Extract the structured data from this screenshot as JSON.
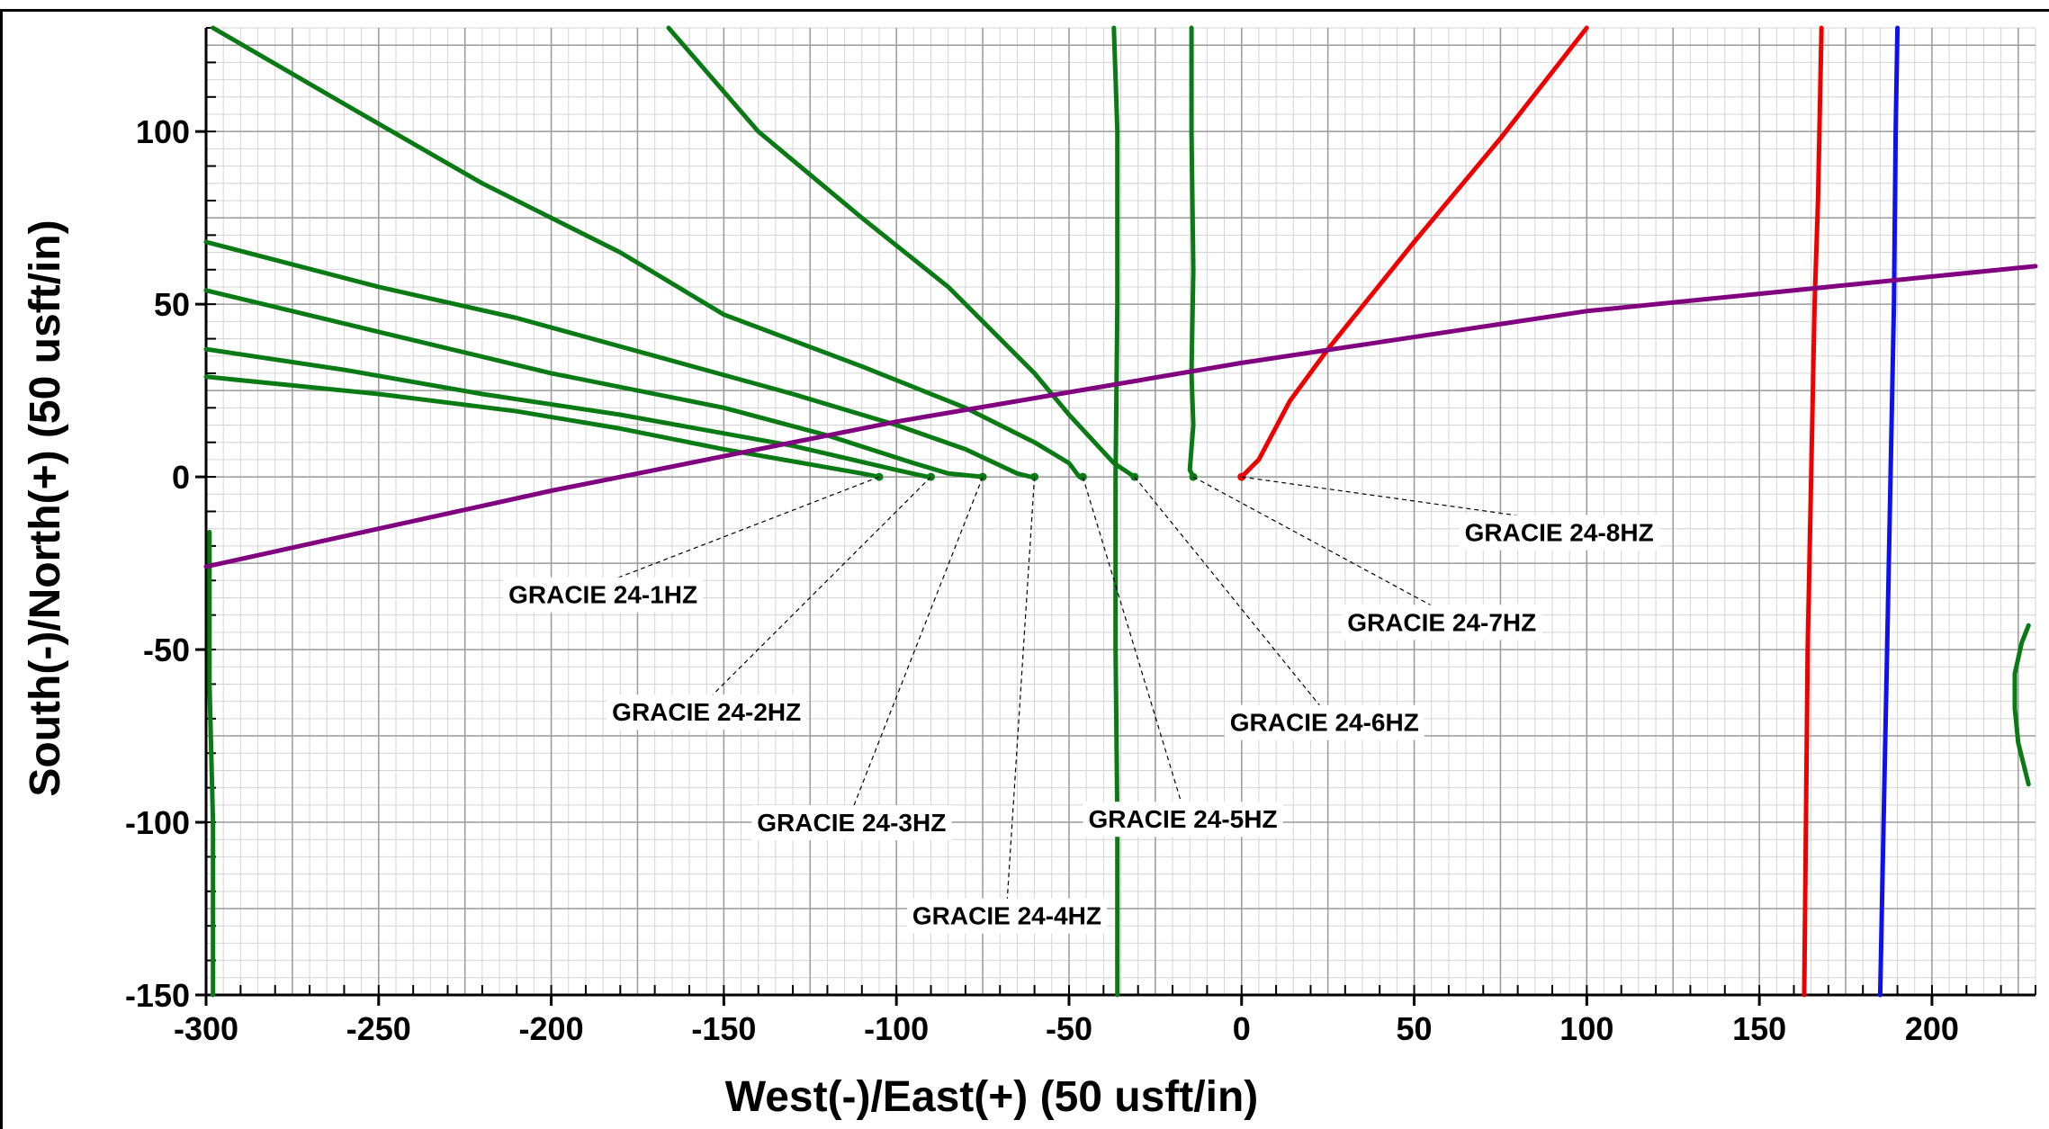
{
  "chart_data": {
    "type": "line",
    "xlabel": "West(-)/East(+) (50 usft/in)",
    "ylabel": "South(-)/North(+) (50 usft/in)",
    "xlim": [
      -300,
      230
    ],
    "ylim": [
      -150,
      130
    ],
    "x_ticks": [
      -300,
      -250,
      -200,
      -150,
      -100,
      -50,
      0,
      50,
      100,
      150,
      200
    ],
    "y_ticks": [
      -150,
      -100,
      -50,
      0,
      50,
      100
    ],
    "grid": true,
    "colors": {
      "green": "#0a7a14",
      "red": "#ee0000",
      "blue": "#1010ee",
      "purple": "#800080"
    },
    "series": [
      {
        "color": "green",
        "points": [
          [
            -105,
            0
          ],
          [
            -110,
            1
          ],
          [
            -150,
            8
          ],
          [
            -180,
            14
          ],
          [
            -210,
            19
          ],
          [
            -250,
            24
          ],
          [
            -300,
            29
          ]
        ]
      },
      {
        "color": "green",
        "points": [
          [
            -91,
            0
          ],
          [
            -100,
            2
          ],
          [
            -130,
            9
          ],
          [
            -180,
            18
          ],
          [
            -220,
            24
          ],
          [
            -260,
            31
          ],
          [
            -300,
            37
          ]
        ]
      },
      {
        "color": "green",
        "points": [
          [
            -75,
            0
          ],
          [
            -85,
            1
          ],
          [
            -95,
            4
          ],
          [
            -120,
            12
          ],
          [
            -150,
            20
          ],
          [
            -200,
            30
          ],
          [
            -250,
            42
          ],
          [
            -300,
            54
          ]
        ]
      },
      {
        "color": "green",
        "points": [
          [
            -61,
            0
          ],
          [
            -65,
            1
          ],
          [
            -80,
            8
          ],
          [
            -100,
            15
          ],
          [
            -130,
            24
          ],
          [
            -170,
            35
          ],
          [
            -210,
            46
          ],
          [
            -250,
            55
          ],
          [
            -300,
            68
          ]
        ]
      },
      {
        "color": "green",
        "points": [
          [
            -47,
            0
          ],
          [
            -50,
            4
          ],
          [
            -60,
            10
          ],
          [
            -80,
            20
          ],
          [
            -110,
            32
          ],
          [
            -150,
            47
          ],
          [
            -180,
            65
          ],
          [
            -220,
            85
          ],
          [
            -260,
            108
          ],
          [
            -298,
            130
          ]
        ]
      },
      {
        "color": "green",
        "points": [
          [
            -37,
            130
          ],
          [
            -36,
            100
          ],
          [
            -36,
            50
          ],
          [
            -36.5,
            0
          ],
          [
            -36.5,
            -50
          ],
          [
            -36,
            -100
          ],
          [
            -36,
            -150
          ]
        ]
      },
      {
        "color": "green",
        "points": [
          [
            -31,
            0
          ],
          [
            -37,
            4
          ],
          [
            -50,
            18
          ],
          [
            -60,
            30
          ],
          [
            -85,
            55
          ],
          [
            -110,
            75
          ],
          [
            -140,
            100
          ],
          [
            -166,
            130
          ]
        ]
      },
      {
        "color": "green",
        "points": [
          [
            -14,
            0
          ],
          [
            -15,
            2
          ],
          [
            -14,
            15
          ],
          [
            -14.5,
            30
          ],
          [
            -14,
            60
          ],
          [
            -14.5,
            100
          ],
          [
            -14.5,
            130
          ]
        ]
      },
      {
        "color": "green",
        "points": [
          [
            -299,
            -16
          ],
          [
            -299,
            -60
          ],
          [
            -298,
            -100
          ],
          [
            -298,
            -150
          ]
        ]
      },
      {
        "color": "green",
        "points": [
          [
            228,
            -43
          ],
          [
            226,
            -48
          ],
          [
            224,
            -57
          ],
          [
            224,
            -67
          ],
          [
            225,
            -77
          ],
          [
            228,
            -89
          ]
        ]
      },
      {
        "color": "red",
        "points": [
          [
            0,
            0
          ],
          [
            5,
            5
          ],
          [
            14,
            22
          ],
          [
            25,
            37
          ],
          [
            50,
            68
          ],
          [
            75,
            98
          ],
          [
            100,
            130
          ]
        ]
      },
      {
        "color": "red",
        "points": [
          [
            163,
            -150
          ],
          [
            163.5,
            -100
          ],
          [
            164,
            -50
          ],
          [
            165,
            0
          ],
          [
            166,
            50
          ],
          [
            167,
            80
          ],
          [
            168,
            130
          ]
        ]
      },
      {
        "color": "blue",
        "points": [
          [
            185,
            -150
          ],
          [
            186,
            -100
          ],
          [
            187,
            -50
          ],
          [
            188,
            0
          ],
          [
            189,
            50
          ],
          [
            189.5,
            100
          ],
          [
            190,
            130
          ]
        ]
      },
      {
        "color": "purple",
        "points": [
          [
            -300,
            -26
          ],
          [
            -200,
            -4
          ],
          [
            -100,
            16
          ],
          [
            0,
            33
          ],
          [
            100,
            48
          ],
          [
            200,
            58
          ],
          [
            230,
            61
          ]
        ]
      }
    ],
    "annotations": [
      {
        "text": "GRACIE 24-1HZ",
        "point": [
          -105,
          0
        ],
        "label_at": [
          -185,
          -34
        ]
      },
      {
        "text": "GRACIE 24-2HZ",
        "point": [
          -90,
          0
        ],
        "label_at": [
          -155,
          -68
        ]
      },
      {
        "text": "GRACIE 24-3HZ",
        "point": [
          -75,
          0
        ],
        "label_at": [
          -113,
          -100
        ]
      },
      {
        "text": "GRACIE 24-4HZ",
        "point": [
          -60,
          0
        ],
        "label_at": [
          -68,
          -127
        ]
      },
      {
        "text": "GRACIE 24-5HZ",
        "point": [
          -46,
          0
        ],
        "label_at": [
          -17,
          -99
        ]
      },
      {
        "text": "GRACIE 24-6HZ",
        "point": [
          -31,
          0
        ],
        "label_at": [
          24,
          -71
        ]
      },
      {
        "text": "GRACIE 24-7HZ",
        "point": [
          -14,
          0
        ],
        "label_at": [
          58,
          -42
        ]
      },
      {
        "text": "GRACIE 24-8HZ",
        "point": [
          0,
          0
        ],
        "label_at": [
          92,
          -16
        ]
      }
    ]
  }
}
